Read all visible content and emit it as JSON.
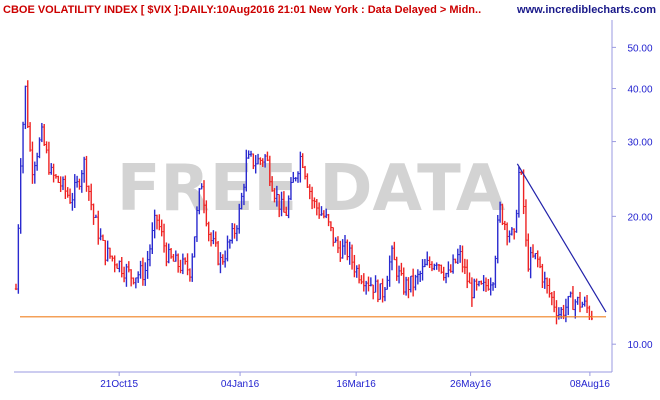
{
  "header": {
    "title": "CBOE VOLATILITY INDEX [ $VIX ]:DAILY:10Aug2016 21:01 New York : Data Delayed > Midn..",
    "site": "www.incrediblecharts.com"
  },
  "watermark": "FREE DATA",
  "colors": {
    "up": "#2a2acf",
    "down": "#ee2222",
    "axis": "#1f1fcf",
    "trendline": "#2222aa",
    "support": "#f08020",
    "watermark": "#d3d3d3",
    "title": "#cc0000",
    "site": "#1a1a8a"
  },
  "chart_data": {
    "type": "candlestick",
    "title": "CBOE VOLATILITY INDEX [ $VIX ]:DAILY:10Aug2016 21:01 New York : Data Delayed > Midn..",
    "y_scale": "log",
    "ylim": [
      8.6,
      58
    ],
    "yticks": [
      10,
      20,
      30,
      40,
      50
    ],
    "ytick_labels": [
      "10.00",
      "20.00",
      "30.00",
      "40.00",
      "50.00"
    ],
    "xlim": [
      "2015-08-18",
      "2016-08-18"
    ],
    "xticks": [
      {
        "date": "2015-10-21",
        "label": "21Oct15"
      },
      {
        "date": "2016-01-04",
        "label": "04Jan16"
      },
      {
        "date": "2016-03-16",
        "label": "16Mar16"
      },
      {
        "date": "2016-05-26",
        "label": "26May16"
      },
      {
        "date": "2016-08-08",
        "label": "08Aug16"
      }
    ],
    "series_points": [
      [
        "2015-08-18",
        13.5
      ],
      [
        "2015-08-21",
        28.0
      ],
      [
        "2015-08-24",
        40.7
      ],
      [
        "2015-08-26",
        30.0
      ],
      [
        "2015-08-28",
        26.1
      ],
      [
        "2015-09-03",
        31.0
      ],
      [
        "2015-09-09",
        25.0
      ],
      [
        "2015-09-14",
        24.0
      ],
      [
        "2015-09-21",
        22.0
      ],
      [
        "2015-09-25",
        23.6
      ],
      [
        "2015-09-29",
        27.0
      ],
      [
        "2015-10-05",
        20.0
      ],
      [
        "2015-10-12",
        16.5
      ],
      [
        "2015-10-21",
        15.5
      ],
      [
        "2015-10-28",
        14.5
      ],
      [
        "2015-11-06",
        14.8
      ],
      [
        "2015-11-13",
        20.0
      ],
      [
        "2015-11-20",
        16.0
      ],
      [
        "2015-11-25",
        15.5
      ],
      [
        "2015-12-04",
        15.0
      ],
      [
        "2015-12-11",
        24.4
      ],
      [
        "2015-12-16",
        17.9
      ],
      [
        "2015-12-23",
        15.6
      ],
      [
        "2015-12-31",
        18.2
      ],
      [
        "2016-01-04",
        20.7
      ],
      [
        "2016-01-08",
        27.0
      ],
      [
        "2016-01-15",
        27.0
      ],
      [
        "2016-01-20",
        27.6
      ],
      [
        "2016-01-26",
        22.5
      ],
      [
        "2016-02-01",
        19.98
      ],
      [
        "2016-02-05",
        23.4
      ],
      [
        "2016-02-11",
        28.1
      ],
      [
        "2016-02-18",
        21.6
      ],
      [
        "2016-02-26",
        19.8
      ],
      [
        "2016-03-04",
        16.9
      ],
      [
        "2016-03-11",
        16.5
      ],
      [
        "2016-03-16",
        14.99
      ],
      [
        "2016-03-23",
        14.2
      ],
      [
        "2016-04-01",
        13.1
      ],
      [
        "2016-04-07",
        16.2
      ],
      [
        "2016-04-14",
        13.7
      ],
      [
        "2016-04-21",
        13.9
      ],
      [
        "2016-04-28",
        15.2
      ],
      [
        "2016-05-05",
        15.9
      ],
      [
        "2016-05-12",
        14.4
      ],
      [
        "2016-05-19",
        16.3
      ],
      [
        "2016-05-26",
        13.4
      ],
      [
        "2016-06-03",
        13.5
      ],
      [
        "2016-06-09",
        14.6
      ],
      [
        "2016-06-13",
        20.9
      ],
      [
        "2016-06-16",
        19.4
      ],
      [
        "2016-06-23",
        17.3
      ],
      [
        "2016-06-24",
        25.8
      ],
      [
        "2016-06-27",
        23.9
      ],
      [
        "2016-06-30",
        15.6
      ],
      [
        "2016-07-06",
        16.0
      ],
      [
        "2016-07-12",
        13.6
      ],
      [
        "2016-07-20",
        11.8
      ],
      [
        "2016-07-28",
        12.7
      ],
      [
        "2016-08-04",
        12.4
      ],
      [
        "2016-08-10",
        11.66
      ]
    ],
    "trendline": {
      "from": [
        "2016-06-24",
        26.6
      ],
      "to": [
        "2016-08-18",
        11.9
      ]
    },
    "support_line": {
      "value": 11.6,
      "from": "2015-08-18",
      "to": "2016-08-18"
    }
  }
}
